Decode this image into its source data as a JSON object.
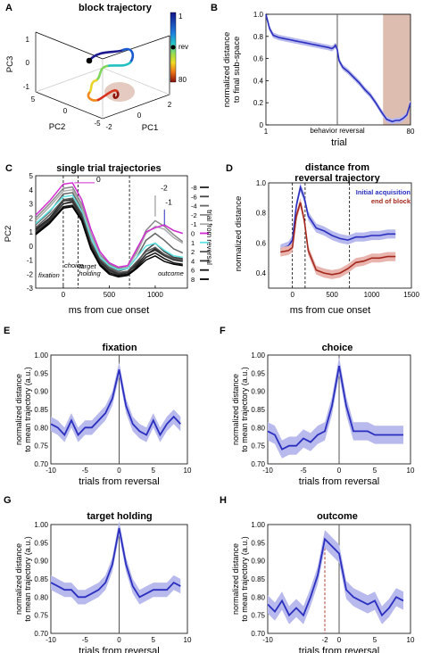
{
  "panels": {
    "A": {
      "letter": "A",
      "title": "block trajectory",
      "xlabel": "PC2",
      "ylabel": "PC3",
      "zlabel": "PC1",
      "ticks_pc3": [
        "1",
        "0",
        "-1"
      ],
      "ticks_pc2": [
        "5",
        "0",
        "-5"
      ],
      "ticks_pc1": [
        "-2",
        "0",
        "2"
      ],
      "colorbar": {
        "top": "1",
        "mid": "rev",
        "bottom": "80"
      }
    },
    "B": {
      "letter": "B",
      "xlabel": "trial",
      "ylabel_1": "normalized distance",
      "ylabel_2": "to final sub-space",
      "xticks": [
        "1",
        "80"
      ],
      "yticks": [
        "1.0",
        "0.8",
        "0.6",
        "0.4",
        "0.2",
        "0"
      ],
      "annotation": "behavior reversal"
    },
    "C": {
      "letter": "C",
      "title": "single trial trajectories",
      "xlabel": "ms from cue onset",
      "ylabel": "PC2",
      "xticks": [
        "0",
        "500",
        "1000"
      ],
      "yticks": [
        "5",
        "4",
        "3",
        "2",
        "1",
        "0",
        "-1",
        "-2",
        "-3"
      ],
      "epochs": [
        "fixation",
        "choice",
        "target holding",
        "outcome"
      ],
      "legend_title": "trial from reversal",
      "legend": [
        "-8",
        "-6",
        "-4",
        "-2",
        "-1",
        "0",
        "1",
        "2",
        "4",
        "6",
        "8"
      ],
      "annots": [
        "0",
        "-2",
        "-1"
      ]
    },
    "D": {
      "letter": "D",
      "title_1": "distance from",
      "title_2": "reversal trajectory",
      "xlabel": "ms from cue onset",
      "ylabel": "normalized distance",
      "xticks": [
        "0",
        "500",
        "1000",
        "1500"
      ],
      "yticks": [
        "1.0",
        "0.8",
        "0.6",
        "0.4"
      ],
      "legend": [
        "Initial acquisition",
        "end of block"
      ]
    },
    "E": {
      "letter": "E",
      "title": "fixation"
    },
    "F": {
      "letter": "F",
      "title": "choice"
    },
    "G": {
      "letter": "G",
      "title": "target holding"
    },
    "H": {
      "letter": "H",
      "title": "outcome",
      "marker": "-2"
    },
    "shared": {
      "xlabel": "trials from reversal",
      "ylabel_1": "normalized distance",
      "ylabel_2": "to mean trajectory (a.u.)",
      "xticks": [
        "-10",
        "-5",
        "0",
        "5",
        "10"
      ],
      "yticks": [
        "1.00",
        "0.95",
        "0.90",
        "0.85",
        "0.80",
        "0.75",
        "0.70"
      ]
    }
  },
  "colors": {
    "blue": "#2a2fbf",
    "band": "#b8b9ec",
    "red": "#a3271c",
    "redband": "#e8b4ad",
    "shade": "#ddbdb0",
    "grey": "#777777"
  },
  "chart_data": [
    {
      "panel": "B",
      "type": "line",
      "x_name": "trial",
      "xlim": [
        1,
        80
      ],
      "ylim": [
        0,
        1
      ],
      "reversal_trial": 40,
      "shaded_trials": [
        65,
        80
      ],
      "x": [
        1,
        3,
        5,
        8,
        11,
        14,
        17,
        20,
        23,
        26,
        29,
        32,
        35,
        37,
        38,
        39,
        40,
        41,
        43,
        46,
        49,
        52,
        55,
        58,
        61,
        64,
        67,
        70,
        72,
        74,
        76,
        78,
        80
      ],
      "y": [
        1.0,
        0.87,
        0.81,
        0.79,
        0.78,
        0.77,
        0.76,
        0.75,
        0.74,
        0.73,
        0.72,
        0.71,
        0.7,
        0.69,
        0.7,
        0.72,
        0.68,
        0.58,
        0.52,
        0.48,
        0.43,
        0.38,
        0.32,
        0.27,
        0.2,
        0.12,
        0.05,
        0.03,
        0.04,
        0.04,
        0.06,
        0.09,
        0.2
      ]
    },
    {
      "panel": "C",
      "type": "line",
      "xlim": [
        -300,
        1350
      ],
      "ylim": [
        -3,
        5
      ],
      "epoch_lines": [
        0,
        160,
        720
      ],
      "x": [
        -300,
        -150,
        0,
        100,
        200,
        300,
        400,
        500,
        600,
        700,
        800,
        900,
        1000,
        1100,
        1200,
        1300
      ],
      "series": [
        {
          "name": "-8",
          "color": "#222222",
          "values": [
            1.2,
            2.0,
            3.2,
            3.3,
            2.2,
            0.2,
            -1.1,
            -1.7,
            -1.9,
            -1.8,
            -1.4,
            -0.6,
            -0.2,
            -0.6,
            -0.9,
            -1.0
          ]
        },
        {
          "name": "-6",
          "color": "#444444",
          "values": [
            1.0,
            1.8,
            3.0,
            3.1,
            2.0,
            0.0,
            -1.2,
            -1.8,
            -2.0,
            -1.9,
            -1.2,
            -0.3,
            0.2,
            -0.4,
            -0.8,
            -0.9
          ]
        },
        {
          "name": "-4",
          "color": "#666666",
          "values": [
            1.5,
            2.4,
            3.7,
            3.8,
            2.6,
            0.6,
            -0.9,
            -1.5,
            -1.8,
            -1.6,
            -0.8,
            0.4,
            0.9,
            0.4,
            -0.2,
            -0.5
          ]
        },
        {
          "name": "-2",
          "color": "#888888",
          "values": [
            2.0,
            3.0,
            4.1,
            4.2,
            3.0,
            0.9,
            -0.6,
            -1.3,
            -1.6,
            -1.5,
            -0.4,
            1.1,
            1.8,
            1.4,
            0.8,
            0.3
          ]
        },
        {
          "name": "-1",
          "color": "#aaaaaa",
          "values": [
            1.8,
            2.8,
            3.9,
            4.0,
            2.8,
            0.8,
            -0.7,
            -1.4,
            -1.7,
            -1.5,
            -0.5,
            0.9,
            1.4,
            1.2,
            0.6,
            0.2
          ]
        },
        {
          "name": "0",
          "color": "#d02bd0",
          "values": [
            2.2,
            3.2,
            4.4,
            4.5,
            3.3,
            1.2,
            -0.4,
            -1.2,
            -1.5,
            -1.4,
            -0.2,
            1.0,
            1.3,
            1.5,
            1.1,
            0.9
          ]
        },
        {
          "name": "1",
          "color": "#5fe3e3",
          "values": [
            1.6,
            2.5,
            3.5,
            3.6,
            2.5,
            0.6,
            -0.8,
            -1.4,
            -1.7,
            -1.6,
            -0.8,
            0.0,
            0.2,
            -0.3,
            -0.7,
            -0.8
          ]
        },
        {
          "name": "2",
          "color": "#555555",
          "values": [
            1.3,
            2.2,
            3.3,
            3.4,
            2.3,
            0.3,
            -1.0,
            -1.6,
            -1.9,
            -1.8,
            -1.1,
            -0.4,
            -0.1,
            -0.6,
            -0.9,
            -1.0
          ]
        },
        {
          "name": "4",
          "color": "#333333",
          "values": [
            1.1,
            1.9,
            3.0,
            3.2,
            2.1,
            0.1,
            -1.1,
            -1.7,
            -2.0,
            -1.9,
            -1.3,
            -0.6,
            -0.3,
            -0.7,
            -1.0,
            -1.1
          ]
        },
        {
          "name": "6",
          "color": "#111111",
          "values": [
            0.9,
            1.7,
            2.8,
            2.9,
            1.9,
            -0.1,
            -1.3,
            -1.9,
            -2.1,
            -2.0,
            -1.5,
            -0.8,
            -0.5,
            -0.9,
            -1.2,
            -1.3
          ]
        },
        {
          "name": "8",
          "color": "#000000",
          "values": [
            0.8,
            1.6,
            2.7,
            2.8,
            1.8,
            -0.2,
            -1.4,
            -2.0,
            -2.2,
            -2.1,
            -1.6,
            -1.0,
            -0.7,
            -1.1,
            -1.3,
            -1.4
          ]
        }
      ]
    },
    {
      "panel": "D",
      "type": "line",
      "xlim": [
        -300,
        1500
      ],
      "ylim": [
        0.3,
        1.0
      ],
      "epoch_lines": [
        0,
        160,
        720
      ],
      "x": [
        -150,
        -50,
        0,
        50,
        100,
        150,
        200,
        300,
        400,
        500,
        600,
        700,
        800,
        900,
        1000,
        1100,
        1200,
        1300
      ],
      "series": [
        {
          "name": "Initial acquisition",
          "color": "#2a2fbf",
          "values": [
            0.56,
            0.58,
            0.62,
            0.85,
            0.97,
            0.9,
            0.78,
            0.7,
            0.68,
            0.65,
            0.63,
            0.62,
            0.64,
            0.64,
            0.65,
            0.65,
            0.66,
            0.66
          ],
          "band": 0.03
        },
        {
          "name": "end of block",
          "color": "#a3271c",
          "values": [
            0.54,
            0.55,
            0.57,
            0.78,
            0.87,
            0.75,
            0.55,
            0.42,
            0.4,
            0.39,
            0.4,
            0.43,
            0.47,
            0.48,
            0.5,
            0.5,
            0.51,
            0.51
          ],
          "band": 0.03
        }
      ]
    },
    {
      "panel": "E",
      "type": "line",
      "xlim": [
        -10,
        10
      ],
      "ylim": [
        0.7,
        1.0
      ],
      "x": [
        -10,
        -9,
        -8,
        -7,
        -6,
        -5,
        -4,
        -3,
        -2,
        -1,
        0,
        1,
        2,
        3,
        4,
        5,
        6,
        7,
        8,
        9
      ],
      "values": [
        0.81,
        0.8,
        0.78,
        0.82,
        0.78,
        0.8,
        0.8,
        0.82,
        0.84,
        0.88,
        0.96,
        0.86,
        0.81,
        0.79,
        0.78,
        0.82,
        0.78,
        0.81,
        0.83,
        0.81
      ],
      "band": 0.02
    },
    {
      "panel": "F",
      "type": "line",
      "xlim": [
        -10,
        10
      ],
      "ylim": [
        0.7,
        1.0
      ],
      "x": [
        -10,
        -9,
        -8,
        -7,
        -6,
        -5,
        -4,
        -3,
        -2,
        -1,
        0,
        1,
        2,
        3,
        4,
        5,
        6,
        7,
        8,
        9
      ],
      "values": [
        0.79,
        0.78,
        0.74,
        0.75,
        0.75,
        0.77,
        0.76,
        0.78,
        0.79,
        0.86,
        0.97,
        0.86,
        0.79,
        0.79,
        0.79,
        0.78,
        0.78,
        0.78,
        0.78,
        0.78
      ],
      "band": 0.025
    },
    {
      "panel": "G",
      "type": "line",
      "xlim": [
        -10,
        10
      ],
      "ylim": [
        0.7,
        1.0
      ],
      "x": [
        -10,
        -9,
        -8,
        -7,
        -6,
        -5,
        -4,
        -3,
        -2,
        -1,
        0,
        1,
        2,
        3,
        4,
        5,
        6,
        7,
        8,
        9
      ],
      "values": [
        0.84,
        0.83,
        0.82,
        0.82,
        0.8,
        0.8,
        0.81,
        0.82,
        0.84,
        0.89,
        0.99,
        0.89,
        0.83,
        0.8,
        0.81,
        0.82,
        0.82,
        0.82,
        0.84,
        0.83
      ],
      "band": 0.02
    },
    {
      "panel": "H",
      "type": "line",
      "xlim": [
        -10,
        10
      ],
      "ylim": [
        0.7,
        1.0
      ],
      "marker_x": -2,
      "x": [
        -10,
        -9,
        -8,
        -7,
        -6,
        -5,
        -4,
        -3,
        -2,
        -1,
        0,
        1,
        2,
        3,
        4,
        5,
        6,
        7,
        8,
        9
      ],
      "values": [
        0.78,
        0.76,
        0.79,
        0.75,
        0.77,
        0.75,
        0.8,
        0.86,
        0.96,
        0.94,
        0.92,
        0.82,
        0.8,
        0.79,
        0.78,
        0.79,
        0.75,
        0.77,
        0.8,
        0.79
      ],
      "band": 0.025
    }
  ]
}
